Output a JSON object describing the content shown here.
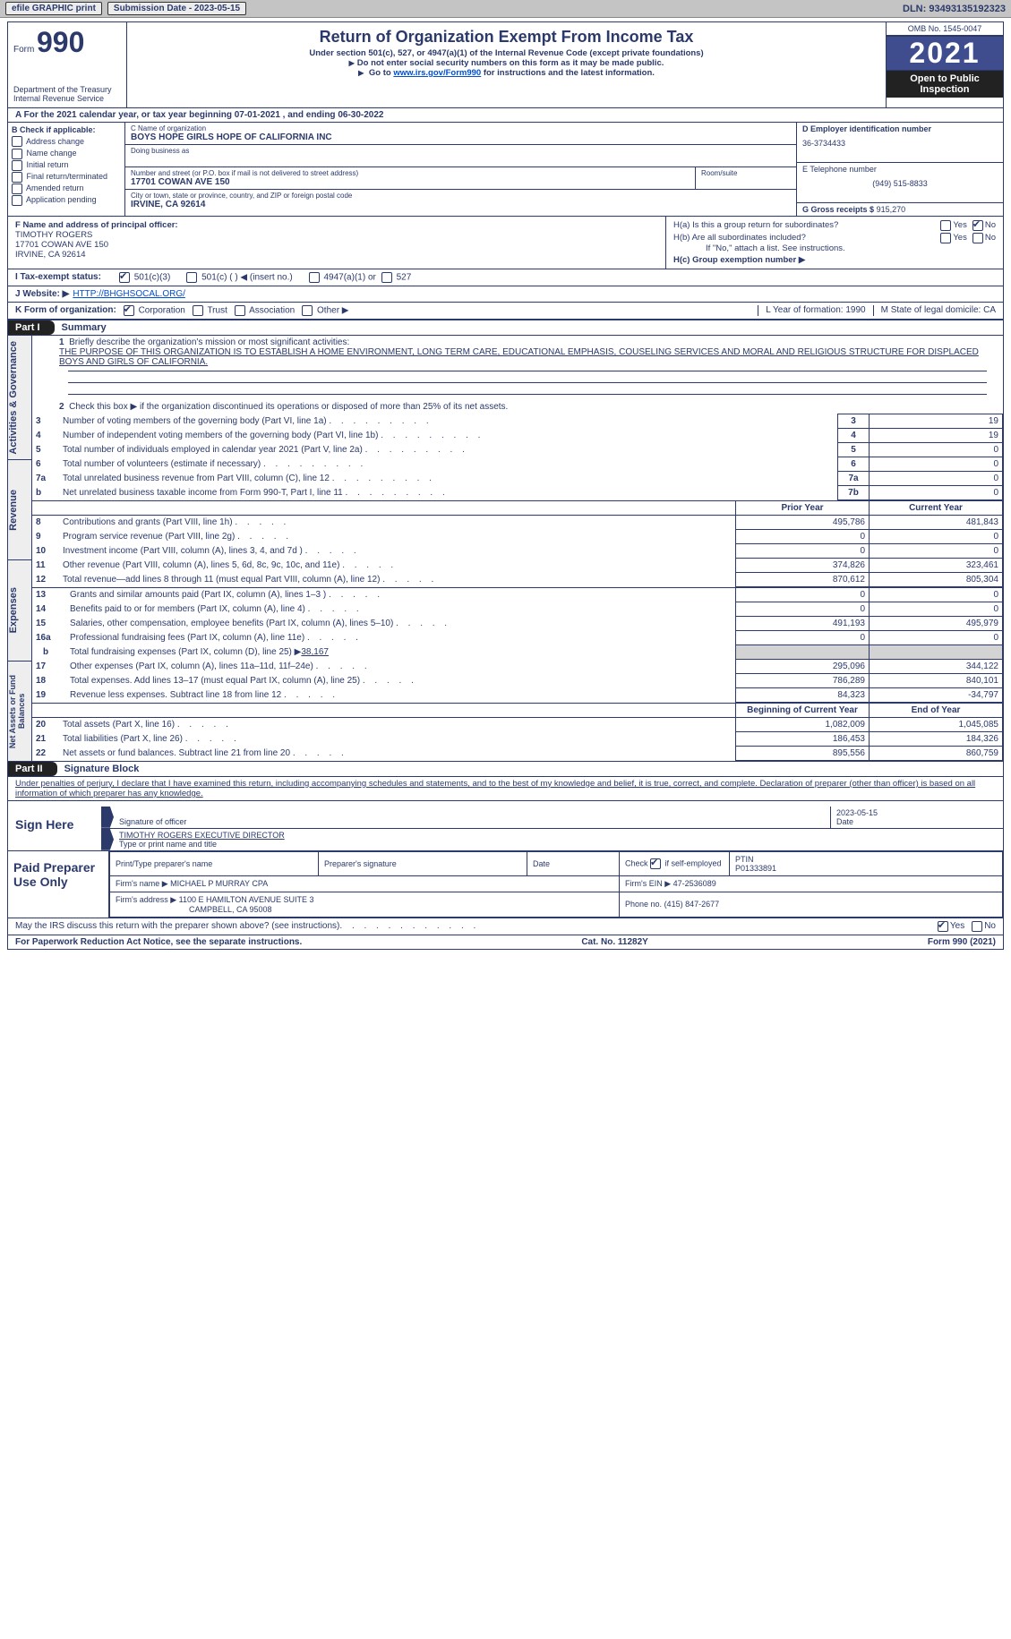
{
  "header": {
    "efile_label": "efile GRAPHIC print",
    "submission_date": "Submission Date - 2023-05-15",
    "dln": "DLN: 93493135192323",
    "form_word": "Form",
    "form_number": "990",
    "main_title": "Return of Organization Exempt From Income Tax",
    "subtitle": "Under section 501(c), 527, or 4947(a)(1) of the Internal Revenue Code (except private foundations)",
    "arrow1": "Do not enter social security numbers on this form as it may be made public.",
    "arrow2_pre": "Go to ",
    "arrow2_link": "www.irs.gov/Form990",
    "arrow2_post": " for instructions and the latest information.",
    "dept": "Department of the Treasury\nInternal Revenue Service",
    "omb": "OMB No. 1545-0047",
    "year": "2021",
    "open_inspection": "Open to Public Inspection"
  },
  "period": "A   For the 2021 calendar year, or tax year beginning 07-01-2021    , and ending 06-30-2022",
  "sectionB": {
    "check_label": "B Check if applicable:",
    "checks": [
      "Address change",
      "Name change",
      "Initial return",
      "Final return/terminated",
      "Amended return",
      "Application pending"
    ],
    "c_name_lbl": "C Name of organization",
    "c_name": "BOYS HOPE GIRLS HOPE OF CALIFORNIA INC",
    "dba_lbl": "Doing business as",
    "addr_lbl": "Number and street (or P.O. box if mail is not delivered to street address)",
    "addr": "17701 COWAN AVE 150",
    "room_lbl": "Room/suite",
    "city_lbl": "City or town, state or province, country, and ZIP or foreign postal code",
    "city": "IRVINE, CA  92614",
    "d_ein_lbl": "D Employer identification number",
    "d_ein": "36-3734433",
    "e_tel_lbl": "E Telephone number",
    "e_tel": "(949) 515-8833",
    "g_gross_lbl": "G Gross receipts $",
    "g_gross": "915,270"
  },
  "sectionF": {
    "f_lbl": "F Name and address of principal officer:",
    "f_name": "TIMOTHY ROGERS",
    "f_addr1": "17701 COWAN AVE 150",
    "f_addr2": "IRVINE, CA  92614",
    "ha": "H(a)  Is this a group return for subordinates?",
    "hb": "H(b)  Are all subordinates included?",
    "hb_note": "If \"No,\" attach a list. See instructions.",
    "hc": "H(c)  Group exemption number ▶",
    "yes": "Yes",
    "no": "No"
  },
  "sectionI": {
    "label": "I   Tax-exempt status:",
    "opt1": "501(c)(3)",
    "opt2": "501(c) (   ) ◀ (insert no.)",
    "opt3": "4947(a)(1) or",
    "opt4": "527"
  },
  "sectionJ": {
    "label": "J   Website: ▶",
    "url": "HTTP://BHGHSOCAL.ORG/"
  },
  "sectionK": {
    "label": "K Form of organization:",
    "opts": [
      "Corporation",
      "Trust",
      "Association",
      "Other ▶"
    ],
    "L": "L Year of formation: 1990",
    "M": "M State of legal domicile: CA"
  },
  "part1": {
    "label": "Part I",
    "title": "Summary",
    "line1_pre": "Briefly describe the organization's mission or most significant activities:",
    "mission": "THE PURPOSE OF THIS ORGANIZATION IS TO ESTABLISH A HOME ENVIRONMENT, LONG TERM CARE, EDUCATIONAL EMPHASIS, COUSELING SERVICES AND MORAL AND RELIGIOUS STRUCTURE FOR DISPLACED BOYS AND GIRLS OF CALIFORNIA.",
    "line2": "Check this box ▶    if the organization discontinued its operations or disposed of more than 25% of its net assets.",
    "rows_simple": [
      {
        "n": "3",
        "desc": "Number of voting members of the governing body (Part VI, line 1a)",
        "box": "3",
        "val": "19"
      },
      {
        "n": "4",
        "desc": "Number of independent voting members of the governing body (Part VI, line 1b)",
        "box": "4",
        "val": "19"
      },
      {
        "n": "5",
        "desc": "Total number of individuals employed in calendar year 2021 (Part V, line 2a)",
        "box": "5",
        "val": "0"
      },
      {
        "n": "6",
        "desc": "Total number of volunteers (estimate if necessary)",
        "box": "6",
        "val": "0"
      },
      {
        "n": "7a",
        "desc": "Total unrelated business revenue from Part VIII, column (C), line 12",
        "box": "7a",
        "val": "0"
      },
      {
        "n": "b",
        "desc": "Net unrelated business taxable income from Form 990-T, Part I, line 11",
        "box": "7b",
        "val": "0"
      }
    ],
    "pyhdr": "Prior Year",
    "cyhdr": "Current Year",
    "rev_rows": [
      {
        "n": "8",
        "desc": "Contributions and grants (Part VIII, line 1h)",
        "py": "495,786",
        "cy": "481,843"
      },
      {
        "n": "9",
        "desc": "Program service revenue (Part VIII, line 2g)",
        "py": "0",
        "cy": "0"
      },
      {
        "n": "10",
        "desc": "Investment income (Part VIII, column (A), lines 3, 4, and 7d )",
        "py": "0",
        "cy": "0"
      },
      {
        "n": "11",
        "desc": "Other revenue (Part VIII, column (A), lines 5, 6d, 8c, 9c, 10c, and 11e)",
        "py": "374,826",
        "cy": "323,461"
      },
      {
        "n": "12",
        "desc": "Total revenue—add lines 8 through 11 (must equal Part VIII, column (A), line 12)",
        "py": "870,612",
        "cy": "805,304"
      }
    ],
    "exp_rows": [
      {
        "n": "13",
        "desc": "Grants and similar amounts paid (Part IX, column (A), lines 1–3 )",
        "py": "0",
        "cy": "0"
      },
      {
        "n": "14",
        "desc": "Benefits paid to or for members (Part IX, column (A), line 4)",
        "py": "0",
        "cy": "0"
      },
      {
        "n": "15",
        "desc": "Salaries, other compensation, employee benefits (Part IX, column (A), lines 5–10)",
        "py": "491,193",
        "cy": "495,979"
      },
      {
        "n": "16a",
        "desc": "Professional fundraising fees (Part IX, column (A), line 11e)",
        "py": "0",
        "cy": "0"
      }
    ],
    "line16b_desc": "Total fundraising expenses (Part IX, column (D), line 25) ▶",
    "line16b_val": "38,167",
    "exp_rows2": [
      {
        "n": "17",
        "desc": "Other expenses (Part IX, column (A), lines 11a–11d, 11f–24e)",
        "py": "295,096",
        "cy": "344,122"
      },
      {
        "n": "18",
        "desc": "Total expenses. Add lines 13–17 (must equal Part IX, column (A), line 25)",
        "py": "786,289",
        "cy": "840,101"
      },
      {
        "n": "19",
        "desc": "Revenue less expenses. Subtract line 18 from line 12",
        "py": "84,323",
        "cy": "-34,797"
      }
    ],
    "bhdr": "Beginning of Current Year",
    "ehdr": "End of Year",
    "na_rows": [
      {
        "n": "20",
        "desc": "Total assets (Part X, line 16)",
        "b": "1,082,009",
        "e": "1,045,085"
      },
      {
        "n": "21",
        "desc": "Total liabilities (Part X, line 26)",
        "b": "186,453",
        "e": "184,326"
      },
      {
        "n": "22",
        "desc": "Net assets or fund balances. Subtract line 21 from line 20",
        "b": "895,556",
        "e": "860,759"
      }
    ],
    "tabs": [
      "Activities & Governance",
      "Revenue",
      "Expenses",
      "Net Assets or Fund Balances"
    ]
  },
  "part2": {
    "label": "Part II",
    "title": "Signature Block",
    "decl": "Under penalties of perjury, I declare that I have examined this return, including accompanying schedules and statements, and to the best of my knowledge and belief, it is true, correct, and complete. Declaration of preparer (other than officer) is based on all information of which preparer has any knowledge.",
    "sign_here": "Sign Here",
    "sig_date": "2023-05-15",
    "sig_officer_lbl": "Signature of officer",
    "date_lbl": "Date",
    "officer_name": "TIMOTHY ROGERS EXECUTIVE DIRECTOR",
    "type_name_lbl": "Type or print name and title",
    "paid": "Paid Preparer Use Only",
    "prep_name_lbl": "Print/Type preparer's name",
    "prep_sig_lbl": "Preparer's signature",
    "prep_date_lbl": "Date",
    "check_self": "Check         if self-employed",
    "ptin_lbl": "PTIN",
    "ptin": "P01333891",
    "firm_name_lbl": "Firm's name    ▶",
    "firm_name": "MICHAEL P MURRAY CPA",
    "firm_ein_lbl": "Firm's EIN ▶",
    "firm_ein": "47-2536089",
    "firm_addr_lbl": "Firm's address ▶",
    "firm_addr1": "1100 E HAMILTON AVENUE SUITE 3",
    "firm_addr2": "CAMPBELL, CA  95008",
    "phone_lbl": "Phone no.",
    "phone": "(415) 847-2677"
  },
  "bottom": {
    "discuss": "May the IRS discuss this return with the preparer shown above? (see instructions)",
    "yes": "Yes",
    "no": "No",
    "paperwork": "For Paperwork Reduction Act Notice, see the separate instructions.",
    "cat": "Cat. No. 11282Y",
    "formyr": "Form 990 (2021)"
  }
}
